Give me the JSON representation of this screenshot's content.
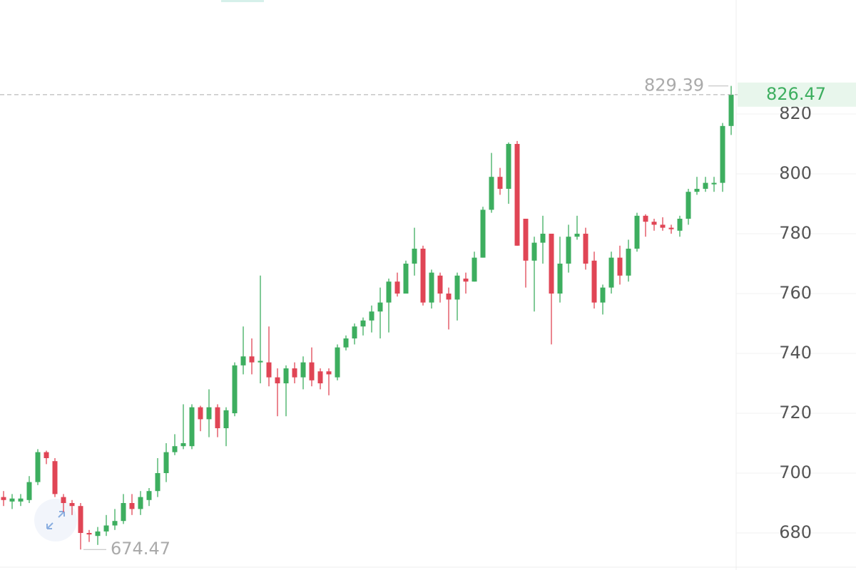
{
  "chart_data": {
    "type": "candlestick",
    "up_color": "#3dae5f",
    "down_color": "#e04555",
    "ylim": [
      667.62,
      858.1
    ],
    "yticks": [
      680,
      700,
      720,
      740,
      760,
      780,
      800,
      820
    ],
    "open": [
      692,
      690.5,
      690.5,
      691,
      697,
      707,
      704,
      692,
      690,
      689,
      680,
      679,
      680.5,
      682.5,
      684,
      690,
      688,
      691,
      694,
      700,
      707,
      709,
      709,
      722,
      718,
      722,
      715,
      720,
      736,
      739,
      737,
      737,
      732,
      730,
      735,
      732,
      737,
      734,
      734,
      732,
      742,
      745,
      749,
      751,
      754,
      757,
      764,
      760,
      770,
      775,
      757,
      766,
      760,
      758,
      765,
      764,
      772,
      788,
      799,
      795,
      810,
      785,
      771,
      777,
      780,
      760,
      770,
      779,
      780,
      771,
      757,
      762,
      772,
      766,
      775,
      786,
      784,
      783,
      782,
      781,
      785,
      794,
      795,
      796.5,
      797,
      816
    ],
    "high": [
      694,
      693,
      693,
      699,
      708,
      707.5,
      705,
      693,
      691,
      690,
      681,
      682,
      686,
      688,
      693,
      693,
      694,
      695,
      705,
      710,
      713,
      723,
      723,
      722.5,
      728,
      723,
      722,
      737,
      749,
      745,
      766,
      749,
      735,
      736,
      737,
      739,
      742,
      735,
      735,
      743,
      746,
      750,
      752,
      756,
      762,
      765,
      767,
      771,
      782,
      776,
      768,
      767,
      762,
      767,
      767,
      774,
      789,
      807,
      802,
      810.5,
      811,
      785,
      779,
      786,
      780,
      779,
      783,
      786,
      782,
      774,
      763,
      774,
      776,
      778,
      787,
      786.5,
      785,
      785.5,
      783,
      786,
      795,
      799,
      799,
      799,
      817,
      829.39
    ],
    "low": [
      689,
      688,
      689,
      690,
      696,
      703,
      692,
      687,
      686,
      674.47,
      677,
      676,
      679,
      681,
      683,
      686,
      686,
      689,
      692,
      697,
      706,
      708,
      708,
      714,
      712,
      712,
      709,
      719,
      733,
      733,
      730,
      729,
      719,
      719,
      730,
      728,
      729,
      728,
      726,
      731,
      741,
      743,
      746,
      747,
      745,
      747,
      759,
      760,
      766,
      756,
      755,
      757,
      748,
      751,
      760,
      764,
      772,
      787,
      793,
      790,
      776,
      762,
      754,
      770,
      743,
      757,
      767,
      778,
      768,
      755,
      753,
      760,
      763,
      764,
      774,
      779,
      781,
      781,
      780,
      779,
      783,
      793,
      794,
      794,
      794,
      813
    ],
    "close": [
      691,
      691.5,
      691.5,
      697,
      707,
      705,
      693,
      690,
      689,
      680,
      679.5,
      680.5,
      682.5,
      684,
      690,
      688,
      692,
      694,
      700,
      707,
      709,
      710,
      722,
      718,
      722,
      715,
      721,
      736,
      739,
      737,
      737.5,
      732,
      730,
      735,
      732,
      737,
      731,
      730,
      733,
      742,
      745,
      749,
      751,
      754,
      757,
      764,
      760,
      770,
      775,
      757,
      767,
      760,
      758,
      766,
      764,
      772,
      788,
      799,
      795,
      810,
      776,
      771,
      777,
      780,
      760,
      770,
      779,
      780,
      770,
      757,
      762,
      772,
      766,
      775,
      786,
      784,
      783,
      782,
      781.5,
      785,
      794,
      795,
      797,
      797,
      816,
      826.47
    ],
    "max_label": 829.39,
    "min_label": 674.47,
    "last_price": 826.47
  }
}
